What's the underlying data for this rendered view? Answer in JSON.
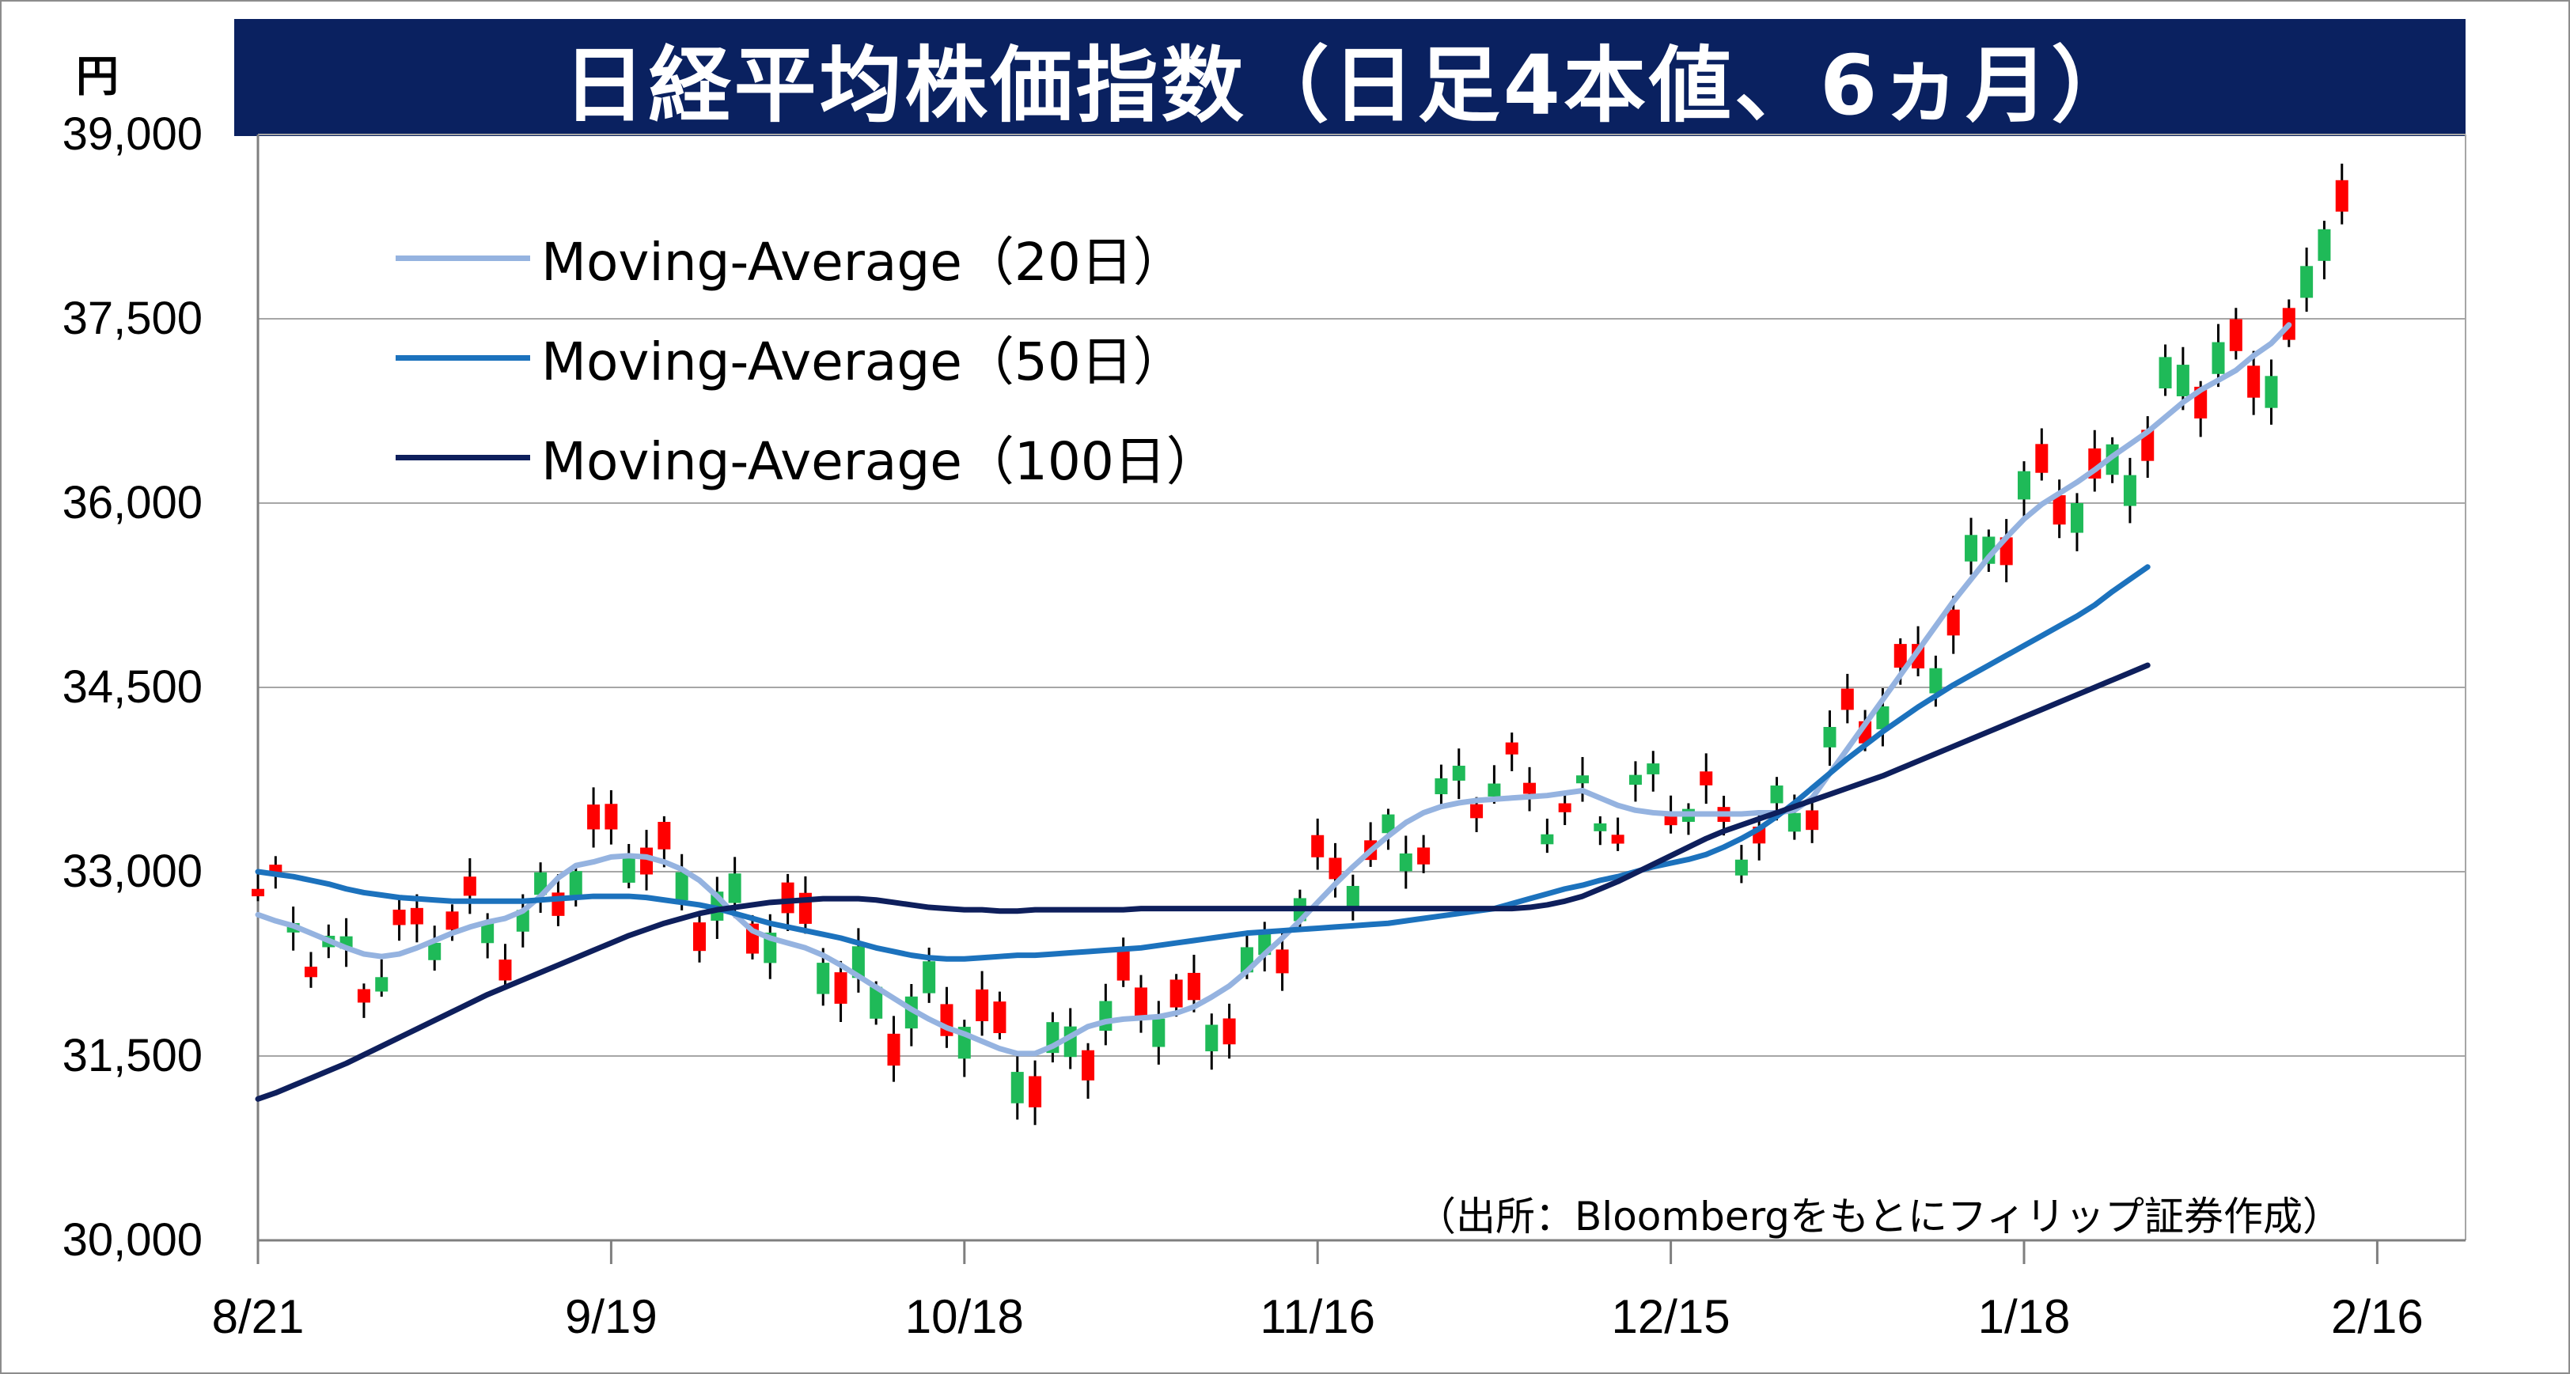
{
  "title": "日経平均株価指数（日足4本値、6ヵ月）",
  "unit": "円",
  "source": "（出所：Bloombergをもとにフィリップ証券作成）",
  "chart_data": {
    "type": "candlestick",
    "ylim": [
      30000,
      39000
    ],
    "yticks": [
      "39,000",
      "37,500",
      "36,000",
      "34,500",
      "33,000",
      "31,500",
      "30,000"
    ],
    "ytick_values": [
      39000,
      37500,
      36000,
      34500,
      33000,
      31500,
      30000
    ],
    "xticks": [
      "8/21",
      "9/19",
      "10/18",
      "11/16",
      "12/15",
      "1/18",
      "2/16"
    ],
    "xtick_index": [
      0,
      20,
      40,
      60,
      80,
      100,
      120
    ],
    "grid": true,
    "legend_position": "top-left",
    "colors": {
      "up": "#ff0000",
      "down": "#1fba58",
      "wick": "#000000",
      "grid": "#a6a6a6"
    },
    "series": [
      {
        "name": "Moving-Average（20日）",
        "color": "#95b3e0",
        "values": [
          32650,
          32600,
          32560,
          32500,
          32440,
          32380,
          32330,
          32310,
          32330,
          32380,
          32440,
          32500,
          32550,
          32590,
          32620,
          32680,
          32800,
          32950,
          33050,
          33080,
          33120,
          33130,
          33120,
          33080,
          33020,
          32930,
          32800,
          32650,
          32520,
          32460,
          32420,
          32380,
          32320,
          32240,
          32150,
          32060,
          31970,
          31880,
          31800,
          31730,
          31680,
          31620,
          31560,
          31520,
          31520,
          31580,
          31660,
          31740,
          31780,
          31800,
          31810,
          31820,
          31850,
          31900,
          31980,
          32070,
          32190,
          32330,
          32460,
          32600,
          32750,
          32900,
          33040,
          33170,
          33290,
          33400,
          33480,
          33530,
          33560,
          33580,
          33590,
          33600,
          33610,
          33620,
          33640,
          33660,
          33600,
          33540,
          33500,
          33480,
          33470,
          33470,
          33470,
          33470,
          33470,
          33480,
          33480,
          33500,
          33600,
          33800,
          34000,
          34200,
          34400,
          34600,
          34800,
          35000,
          35200,
          35380,
          35560,
          35720,
          35870,
          35990,
          36080,
          36170,
          36270,
          36380,
          36480,
          36580,
          36700,
          36820,
          36920,
          37000,
          37080,
          37200,
          37300,
          37450
        ]
      },
      {
        "name": "Moving-Average（50日）",
        "color": "#1c72bd",
        "values": [
          33000,
          32980,
          32960,
          32930,
          32900,
          32860,
          32830,
          32810,
          32790,
          32780,
          32770,
          32760,
          32760,
          32760,
          32760,
          32760,
          32770,
          32780,
          32790,
          32800,
          32800,
          32800,
          32790,
          32770,
          32750,
          32730,
          32700,
          32660,
          32620,
          32580,
          32550,
          32520,
          32490,
          32460,
          32420,
          32380,
          32350,
          32320,
          32300,
          32290,
          32290,
          32300,
          32310,
          32320,
          32320,
          32330,
          32340,
          32350,
          32360,
          32370,
          32380,
          32400,
          32420,
          32440,
          32460,
          32480,
          32500,
          32510,
          32520,
          32530,
          32540,
          32550,
          32560,
          32570,
          32580,
          32600,
          32620,
          32640,
          32660,
          32680,
          32700,
          32740,
          32780,
          32820,
          32860,
          32890,
          32930,
          32960,
          33000,
          33040,
          33070,
          33100,
          33140,
          33200,
          33270,
          33350,
          33450,
          33560,
          33680,
          33800,
          33920,
          34030,
          34140,
          34240,
          34340,
          34430,
          34520,
          34600,
          34680,
          34760,
          34840,
          34920,
          35000,
          35080,
          35170,
          35280,
          35380,
          35480
        ]
      },
      {
        "name": "Moving-Average（100日）",
        "color": "#0e1f5c",
        "values": [
          31150,
          31200,
          31260,
          31320,
          31380,
          31440,
          31510,
          31580,
          31650,
          31720,
          31790,
          31860,
          31930,
          32000,
          32060,
          32120,
          32180,
          32240,
          32300,
          32360,
          32420,
          32480,
          32530,
          32580,
          32620,
          32660,
          32690,
          32710,
          32730,
          32750,
          32760,
          32770,
          32780,
          32780,
          32780,
          32770,
          32750,
          32730,
          32710,
          32700,
          32690,
          32690,
          32680,
          32680,
          32690,
          32690,
          32690,
          32690,
          32690,
          32690,
          32700,
          32700,
          32700,
          32700,
          32700,
          32700,
          32700,
          32700,
          32700,
          32700,
          32700,
          32700,
          32700,
          32700,
          32700,
          32700,
          32700,
          32700,
          32700,
          32700,
          32700,
          32700,
          32710,
          32730,
          32760,
          32800,
          32860,
          32920,
          32990,
          33060,
          33130,
          33200,
          33270,
          33330,
          33380,
          33430,
          33480,
          33530,
          33580,
          33630,
          33680,
          33730,
          33780,
          33840,
          33900,
          33960,
          34020,
          34080,
          34140,
          34200,
          34260,
          34320,
          34380,
          34440,
          34500,
          34560,
          34620,
          34680
        ]
      }
    ]
  }
}
